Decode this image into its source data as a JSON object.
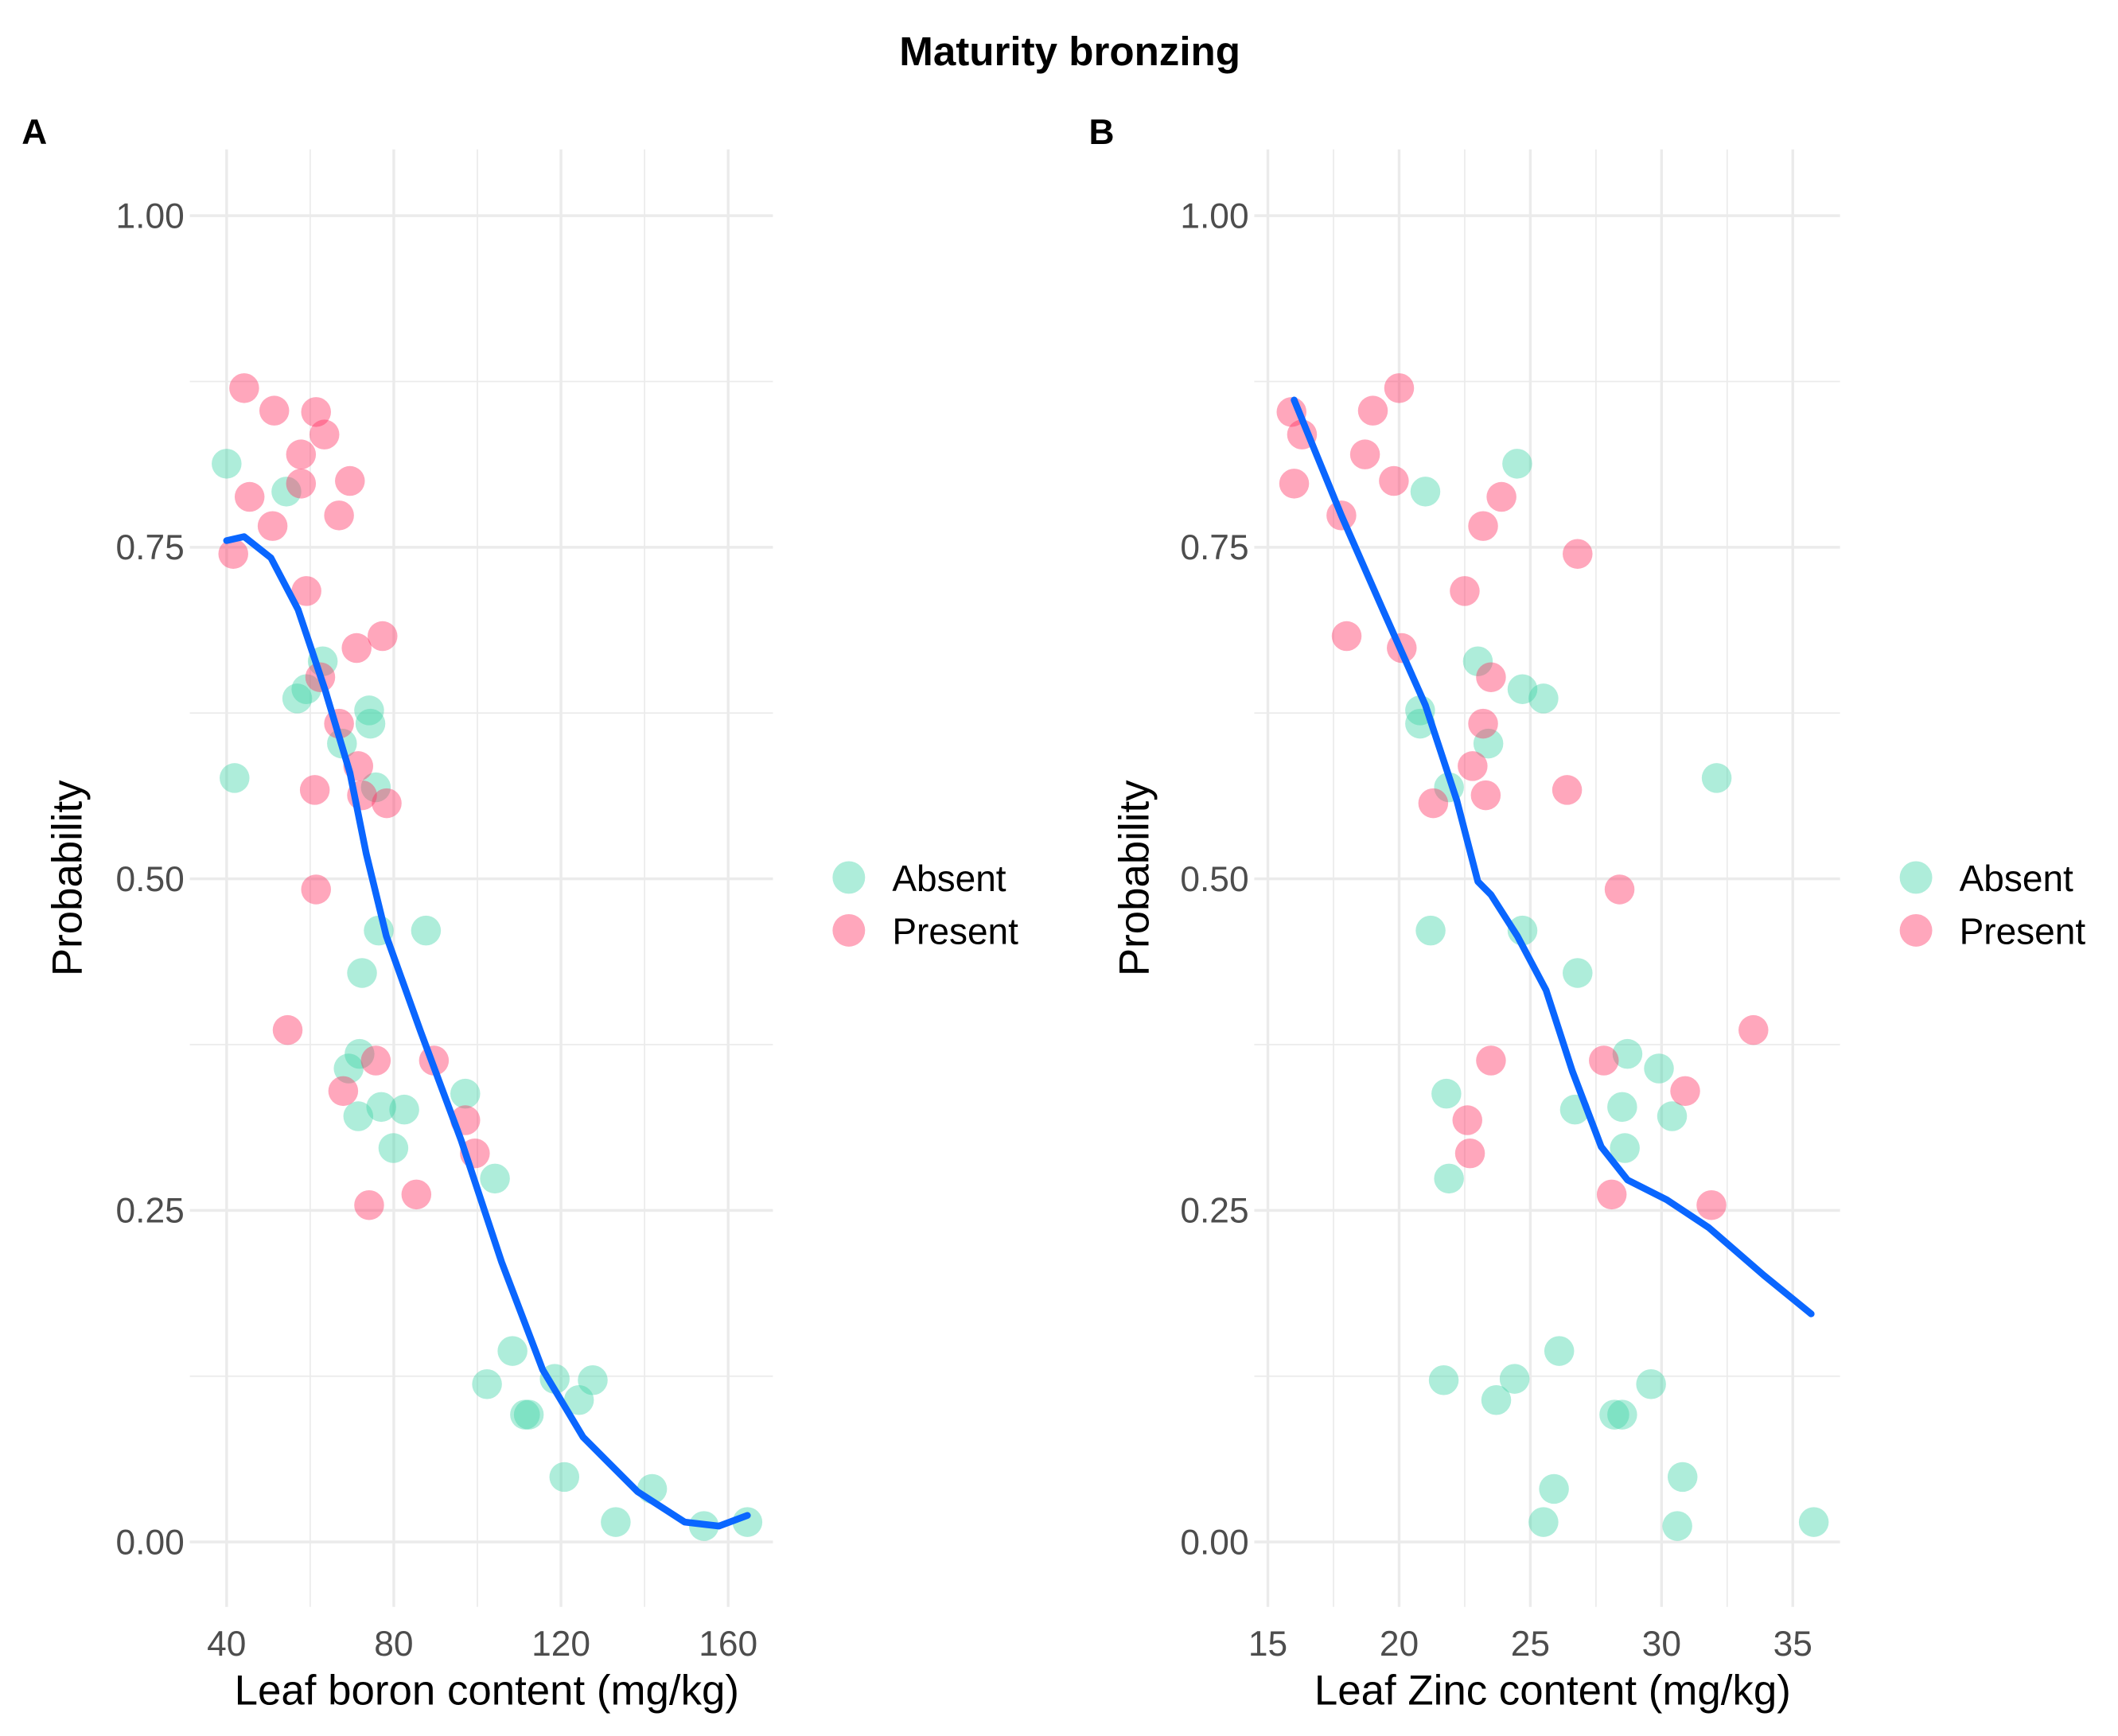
{
  "title": "Maturity bronzing",
  "colors": {
    "absent": "#3fd4a8",
    "present": "#ff2d5f",
    "curve": "#0a66ff",
    "grid": "#ebebeb"
  },
  "chart_data": [
    {
      "type": "scatter",
      "tag": "A",
      "title": "",
      "xlabel": "Leaf boron content (mg/kg)",
      "ylabel": "Probability",
      "xlim": [
        31.2,
        170.7
      ],
      "ylim": [
        -0.049,
        1.05
      ],
      "xticks": [
        40,
        80,
        120,
        160
      ],
      "xtick_labels": [
        "40",
        "80",
        "120",
        "160"
      ],
      "xminor": [
        60,
        100,
        140
      ],
      "yticks": [
        0,
        0.25,
        0.5,
        0.75,
        1
      ],
      "ytick_labels": [
        "0.00",
        "0.25",
        "0.50",
        "0.75",
        "1.00"
      ],
      "yminor": [
        0.125,
        0.375,
        0.625,
        0.875
      ],
      "grid": true,
      "legend": {
        "position": "right",
        "entries": [
          "Absent",
          "Present"
        ]
      },
      "series": [
        {
          "name": "Absent",
          "points": [
            [
              40,
              0.813
            ],
            [
              41.9,
              0.576
            ],
            [
              54.3,
              0.792
            ],
            [
              56.9,
              0.636
            ],
            [
              59.1,
              0.643
            ],
            [
              63.0,
              0.664
            ],
            [
              67.6,
              0.602
            ],
            [
              74.1,
              0.627
            ],
            [
              74.4,
              0.617
            ],
            [
              75.7,
              0.569
            ],
            [
              76.4,
              0.461
            ],
            [
              72.4,
              0.429
            ],
            [
              69.2,
              0.357
            ],
            [
              71.8,
              0.368
            ],
            [
              71.5,
              0.321
            ],
            [
              77.0,
              0.328
            ],
            [
              82.5,
              0.326
            ],
            [
              79.9,
              0.297
            ],
            [
              87.7,
              0.461
            ],
            [
              97.1,
              0.338
            ],
            [
              104.2,
              0.274
            ],
            [
              108.4,
              0.144
            ],
            [
              102.3,
              0.119
            ],
            [
              111.4,
              0.096
            ],
            [
              112.3,
              0.096
            ],
            [
              118.5,
              0.123
            ],
            [
              124.3,
              0.107
            ],
            [
              127.6,
              0.122
            ],
            [
              120.8,
              0.049
            ],
            [
              133.1,
              0.015
            ],
            [
              141.8,
              0.04
            ],
            [
              154.2,
              0.012
            ],
            [
              164.6,
              0.015
            ]
          ]
        },
        {
          "name": "Present",
          "points": [
            [
              44.2,
              0.87
            ],
            [
              51.4,
              0.853
            ],
            [
              61.4,
              0.852
            ],
            [
              63.4,
              0.835
            ],
            [
              57.8,
              0.82
            ],
            [
              57.8,
              0.798
            ],
            [
              45.5,
              0.788
            ],
            [
              51.0,
              0.766
            ],
            [
              69.5,
              0.8
            ],
            [
              66.9,
              0.774
            ],
            [
              41.6,
              0.745
            ],
            [
              59.1,
              0.717
            ],
            [
              71.1,
              0.674
            ],
            [
              77.3,
              0.683
            ],
            [
              62.4,
              0.652
            ],
            [
              66.9,
              0.617
            ],
            [
              71.5,
              0.585
            ],
            [
              61.1,
              0.567
            ],
            [
              72.4,
              0.563
            ],
            [
              78.3,
              0.557
            ],
            [
              61.4,
              0.492
            ],
            [
              54.6,
              0.386
            ],
            [
              75.7,
              0.363
            ],
            [
              67.9,
              0.34
            ],
            [
              89.6,
              0.363
            ],
            [
              97.1,
              0.318
            ],
            [
              99.4,
              0.293
            ],
            [
              85.4,
              0.262
            ],
            [
              74.1,
              0.254
            ]
          ]
        },
        {
          "name": "Smooth",
          "type": "line",
          "points": [
            [
              40,
              0.755
            ],
            [
              44.2,
              0.758
            ],
            [
              50.6,
              0.742
            ],
            [
              57.1,
              0.703
            ],
            [
              63.6,
              0.642
            ],
            [
              69.5,
              0.58
            ],
            [
              73.4,
              0.519
            ],
            [
              78.2,
              0.457
            ],
            [
              86.4,
              0.385
            ],
            [
              96.1,
              0.303
            ],
            [
              105.8,
              0.211
            ],
            [
              115.6,
              0.13
            ],
            [
              125.3,
              0.079
            ],
            [
              138.3,
              0.038
            ],
            [
              149.6,
              0.015
            ],
            [
              157.8,
              0.012
            ],
            [
              164.6,
              0.02
            ]
          ]
        }
      ]
    },
    {
      "type": "scatter",
      "tag": "B",
      "title": "",
      "xlabel": "Leaf Zinc content (mg/kg)",
      "ylabel": "Probability",
      "xlim": [
        14.48,
        36.8
      ],
      "ylim": [
        -0.049,
        1.05
      ],
      "xticks": [
        15,
        20,
        25,
        30,
        35
      ],
      "xtick_labels": [
        "15",
        "20",
        "25",
        "30",
        "35"
      ],
      "xminor": [
        17.5,
        22.5,
        27.5,
        32.5
      ],
      "yticks": [
        0,
        0.25,
        0.5,
        0.75,
        1
      ],
      "ytick_labels": [
        "0.00",
        "0.25",
        "0.50",
        "0.75",
        "1.00"
      ],
      "yminor": [
        0.125,
        0.375,
        0.625,
        0.875
      ],
      "grid": true,
      "legend": {
        "position": "right",
        "entries": [
          "Absent",
          "Present"
        ]
      },
      "series": [
        {
          "name": "Absent",
          "points": [
            [
              24.5,
              0.813
            ],
            [
              32.1,
              0.576
            ],
            [
              21.0,
              0.792
            ],
            [
              25.5,
              0.636
            ],
            [
              24.7,
              0.643
            ],
            [
              23.0,
              0.664
            ],
            [
              23.4,
              0.602
            ],
            [
              20.8,
              0.627
            ],
            [
              20.8,
              0.617
            ],
            [
              21.9,
              0.569
            ],
            [
              21.2,
              0.461
            ],
            [
              24.7,
              0.461
            ],
            [
              26.8,
              0.429
            ],
            [
              29.9,
              0.357
            ],
            [
              28.7,
              0.368
            ],
            [
              30.4,
              0.321
            ],
            [
              28.5,
              0.328
            ],
            [
              26.7,
              0.326
            ],
            [
              28.6,
              0.297
            ],
            [
              21.8,
              0.338
            ],
            [
              21.9,
              0.274
            ],
            [
              26.1,
              0.144
            ],
            [
              21.7,
              0.122
            ],
            [
              24.4,
              0.123
            ],
            [
              23.7,
              0.107
            ],
            [
              29.6,
              0.119
            ],
            [
              28.2,
              0.096
            ],
            [
              28.5,
              0.096
            ],
            [
              30.8,
              0.049
            ],
            [
              25.9,
              0.04
            ],
            [
              25.5,
              0.015
            ],
            [
              30.6,
              0.012
            ],
            [
              35.8,
              0.015
            ]
          ]
        },
        {
          "name": "Present",
          "points": [
            [
              20.0,
              0.87
            ],
            [
              19.0,
              0.853
            ],
            [
              15.9,
              0.852
            ],
            [
              16.3,
              0.835
            ],
            [
              18.7,
              0.82
            ],
            [
              16.0,
              0.798
            ],
            [
              23.9,
              0.788
            ],
            [
              23.2,
              0.766
            ],
            [
              19.8,
              0.8
            ],
            [
              17.8,
              0.774
            ],
            [
              26.8,
              0.745
            ],
            [
              22.5,
              0.717
            ],
            [
              20.1,
              0.674
            ],
            [
              18.0,
              0.683
            ],
            [
              23.5,
              0.652
            ],
            [
              23.2,
              0.617
            ],
            [
              22.8,
              0.585
            ],
            [
              26.4,
              0.567
            ],
            [
              23.3,
              0.563
            ],
            [
              21.3,
              0.557
            ],
            [
              28.4,
              0.492
            ],
            [
              33.5,
              0.386
            ],
            [
              27.8,
              0.363
            ],
            [
              30.9,
              0.34
            ],
            [
              23.5,
              0.363
            ],
            [
              22.6,
              0.318
            ],
            [
              22.7,
              0.293
            ],
            [
              28.1,
              0.262
            ],
            [
              31.9,
              0.254
            ]
          ]
        },
        {
          "name": "Smooth",
          "type": "line",
          "points": [
            [
              16.0,
              0.861
            ],
            [
              17.8,
              0.774
            ],
            [
              19.4,
              0.702
            ],
            [
              21.0,
              0.631
            ],
            [
              22.2,
              0.559
            ],
            [
              23.0,
              0.498
            ],
            [
              23.5,
              0.488
            ],
            [
              24.5,
              0.457
            ],
            [
              25.6,
              0.416
            ],
            [
              26.6,
              0.355
            ],
            [
              27.7,
              0.298
            ],
            [
              28.7,
              0.273
            ],
            [
              30.2,
              0.258
            ],
            [
              31.8,
              0.237
            ],
            [
              33.9,
              0.201
            ],
            [
              35.7,
              0.172
            ]
          ]
        }
      ]
    }
  ]
}
